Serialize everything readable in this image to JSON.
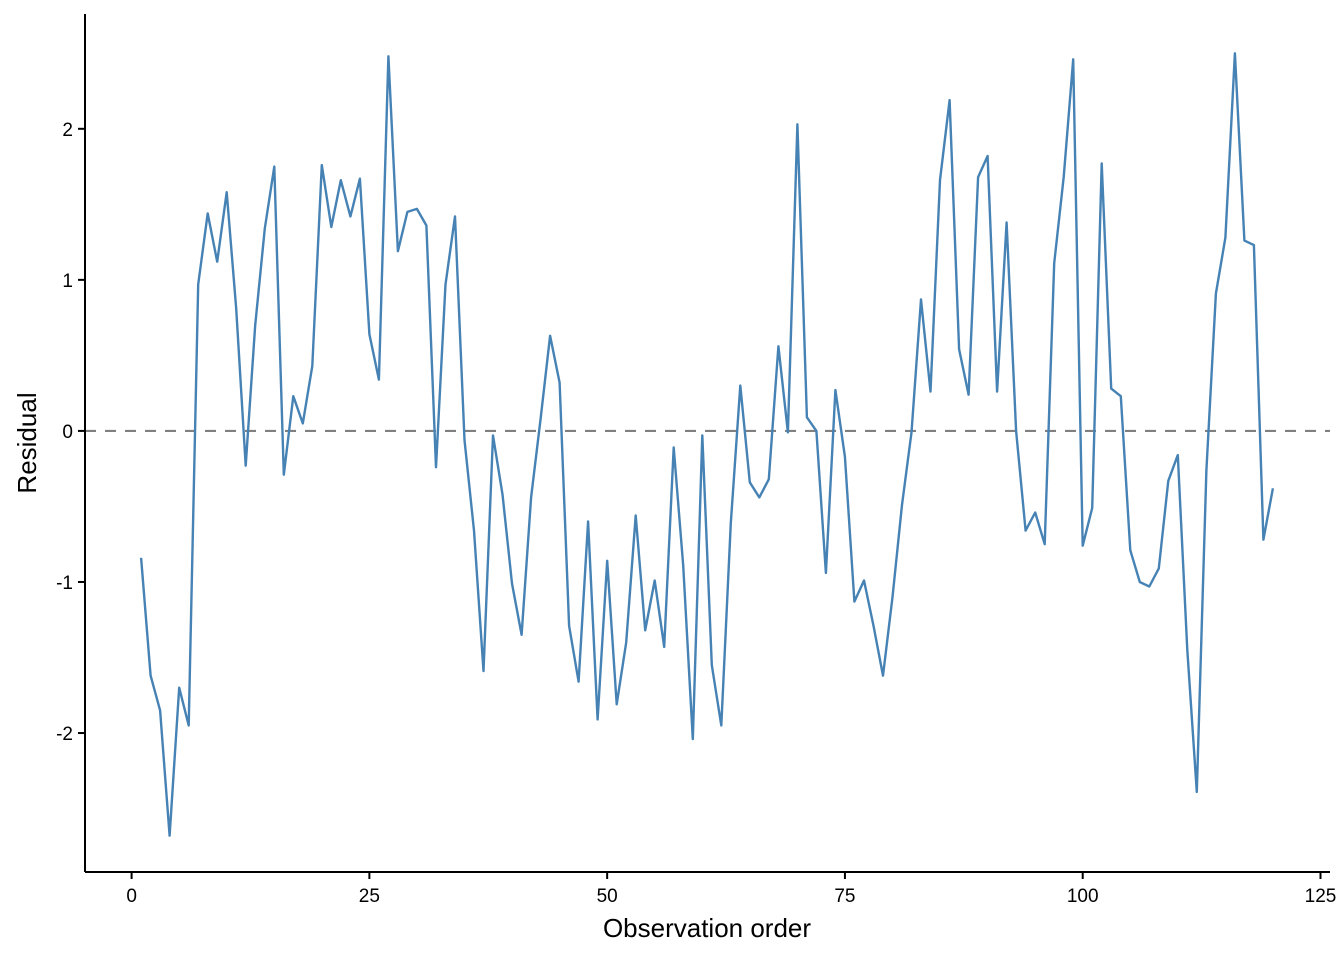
{
  "chart_data": {
    "type": "line",
    "title": "",
    "xlabel": "Observation order",
    "ylabel": "Residual",
    "xlim": [
      -4.9,
      126
    ],
    "ylim": [
      -2.92,
      2.76
    ],
    "x_ticks": [
      0,
      25,
      50,
      75,
      100,
      125
    ],
    "y_ticks": [
      -2,
      -1,
      0,
      1,
      2
    ],
    "grid": false,
    "reference_line": {
      "y": 0,
      "style": "dashed",
      "color": "#808080"
    },
    "line_color": "#4682B4",
    "series": [
      {
        "x": [
          1,
          2,
          3,
          4,
          5,
          6,
          7,
          8,
          9,
          10,
          11,
          12,
          13,
          14,
          15,
          16,
          17,
          18,
          19,
          20,
          21,
          22,
          23,
          24,
          25,
          26,
          27,
          28,
          29,
          30,
          31,
          32,
          33,
          34,
          35,
          36,
          37,
          38,
          39,
          40,
          41,
          42,
          43,
          44,
          45,
          46,
          47,
          48,
          49,
          50,
          51,
          52,
          53,
          54,
          55,
          56,
          57,
          58,
          59,
          60,
          61,
          62,
          63,
          64,
          65,
          66,
          67,
          68,
          69,
          70,
          71,
          72,
          73,
          74,
          75,
          76,
          77,
          78,
          79,
          80,
          81,
          82,
          83,
          84,
          85,
          86,
          87,
          88,
          89,
          90,
          91,
          92,
          93,
          94,
          95,
          96,
          97,
          98,
          99,
          100,
          101,
          102,
          103,
          104,
          105,
          106,
          107,
          108,
          109,
          110,
          111,
          112,
          113,
          114,
          115,
          116,
          117,
          118,
          119,
          120
        ],
        "y": [
          -0.84,
          -1.62,
          -1.85,
          -2.68,
          -1.7,
          -1.95,
          0.97,
          1.44,
          1.12,
          1.58,
          0.81,
          -0.23,
          0.7,
          1.34,
          1.75,
          -0.29,
          0.23,
          0.05,
          0.43,
          1.76,
          1.35,
          1.66,
          1.42,
          1.67,
          0.64,
          0.34,
          2.48,
          1.19,
          1.45,
          1.47,
          1.36,
          -0.24,
          0.97,
          1.42,
          -0.06,
          -0.66,
          -1.59,
          -0.03,
          -0.42,
          -1.01,
          -1.35,
          -0.44,
          0.08,
          0.63,
          0.32,
          -1.29,
          -1.66,
          -0.6,
          -1.91,
          -0.86,
          -1.81,
          -1.4,
          -0.56,
          -1.32,
          -0.99,
          -1.43,
          -0.11,
          -0.89,
          -2.04,
          -0.03,
          -1.55,
          -1.95,
          -0.61,
          0.3,
          -0.34,
          -0.44,
          -0.32,
          0.56,
          -0.01,
          2.03,
          0.09,
          0.0,
          -0.94,
          0.27,
          -0.17,
          -1.13,
          -0.99,
          -1.29,
          -1.62,
          -1.1,
          -0.49,
          -0.01,
          0.87,
          0.26,
          1.66,
          2.19,
          0.54,
          0.24,
          1.68,
          1.82,
          0.26,
          1.38,
          0.0,
          -0.66,
          -0.54,
          -0.75,
          1.11,
          1.68,
          2.46,
          -0.76,
          -0.51,
          1.77,
          0.28,
          0.23,
          -0.79,
          -1.0,
          -1.03,
          -0.91,
          -0.33,
          -0.16,
          -1.45,
          -2.39,
          -0.26,
          0.91,
          1.28,
          2.5,
          1.26,
          1.23,
          -0.72,
          -0.38
        ]
      }
    ]
  }
}
